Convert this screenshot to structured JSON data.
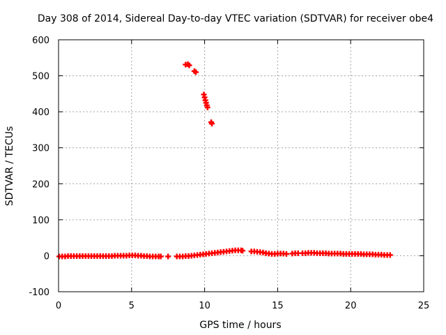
{
  "chart_data": {
    "type": "scatter",
    "title": "Day 308 of 2014, Sidereal Day-to-day VTEC variation (SDTVAR) for receiver obe4",
    "xlabel": "GPS time / hours",
    "ylabel": "SDTVAR / TECUs",
    "xlim": [
      0,
      25
    ],
    "ylim": [
      -100,
      600
    ],
    "xticks": [
      "0",
      "5",
      "10",
      "15",
      "20",
      "25"
    ],
    "yticks": [
      "-100",
      "0",
      "100",
      "200",
      "300",
      "400",
      "500",
      "600"
    ],
    "grid": true,
    "marker": "plus",
    "color": "#ff0000",
    "series": [
      {
        "name": "SDTVAR",
        "points": [
          [
            0.05,
            -2
          ],
          [
            0.25,
            -2
          ],
          [
            0.45,
            -2
          ],
          [
            0.65,
            -1
          ],
          [
            0.85,
            -1
          ],
          [
            1.05,
            -1
          ],
          [
            1.25,
            -1
          ],
          [
            1.45,
            -1
          ],
          [
            1.65,
            -1
          ],
          [
            1.85,
            -1
          ],
          [
            2.05,
            -1
          ],
          [
            2.25,
            -1
          ],
          [
            2.45,
            -1
          ],
          [
            2.65,
            -1
          ],
          [
            2.85,
            -1
          ],
          [
            3.05,
            -1
          ],
          [
            3.25,
            -1
          ],
          [
            3.45,
            -1
          ],
          [
            3.65,
            -1
          ],
          [
            3.85,
            0
          ],
          [
            4.05,
            0
          ],
          [
            4.25,
            0
          ],
          [
            4.45,
            0
          ],
          [
            4.65,
            0
          ],
          [
            4.85,
            1
          ],
          [
            5.05,
            1
          ],
          [
            5.25,
            1
          ],
          [
            5.45,
            0
          ],
          [
            5.65,
            0
          ],
          [
            5.85,
            -1
          ],
          [
            6.05,
            -1
          ],
          [
            6.25,
            -2
          ],
          [
            6.45,
            -2
          ],
          [
            6.65,
            -2
          ],
          [
            6.85,
            -2
          ],
          [
            7.0,
            -2
          ],
          [
            7.5,
            -2
          ],
          [
            8.1,
            -2
          ],
          [
            8.3,
            -2
          ],
          [
            8.5,
            -2
          ],
          [
            8.7,
            -1
          ],
          [
            8.9,
            -1
          ],
          [
            9.1,
            0
          ],
          [
            9.3,
            1
          ],
          [
            9.5,
            2
          ],
          [
            9.7,
            3
          ],
          [
            9.9,
            4
          ],
          [
            10.1,
            5
          ],
          [
            10.3,
            6
          ],
          [
            10.5,
            7
          ],
          [
            10.7,
            8
          ],
          [
            10.9,
            9
          ],
          [
            11.1,
            10
          ],
          [
            11.3,
            11
          ],
          [
            11.5,
            12
          ],
          [
            11.7,
            13
          ],
          [
            11.9,
            14
          ],
          [
            12.1,
            15
          ],
          [
            12.3,
            15
          ],
          [
            12.5,
            15
          ],
          [
            12.6,
            14
          ],
          [
            13.2,
            12
          ],
          [
            13.4,
            12
          ],
          [
            13.6,
            11
          ],
          [
            13.8,
            10
          ],
          [
            14.0,
            9
          ],
          [
            14.2,
            7
          ],
          [
            14.4,
            6
          ],
          [
            14.6,
            5
          ],
          [
            14.8,
            5
          ],
          [
            15.0,
            6
          ],
          [
            15.2,
            6
          ],
          [
            15.4,
            6
          ],
          [
            15.6,
            5
          ],
          [
            16.0,
            6
          ],
          [
            16.2,
            7
          ],
          [
            16.4,
            7
          ],
          [
            16.7,
            7
          ],
          [
            16.9,
            7
          ],
          [
            17.1,
            8
          ],
          [
            17.3,
            8
          ],
          [
            17.5,
            8
          ],
          [
            17.7,
            7
          ],
          [
            17.9,
            7
          ],
          [
            18.1,
            7
          ],
          [
            18.3,
            7
          ],
          [
            18.5,
            6
          ],
          [
            18.7,
            6
          ],
          [
            18.9,
            6
          ],
          [
            19.1,
            6
          ],
          [
            19.3,
            6
          ],
          [
            19.5,
            5
          ],
          [
            19.7,
            5
          ],
          [
            19.9,
            5
          ],
          [
            20.1,
            5
          ],
          [
            20.3,
            5
          ],
          [
            20.5,
            5
          ],
          [
            20.7,
            5
          ],
          [
            20.9,
            4
          ],
          [
            21.1,
            4
          ],
          [
            21.3,
            4
          ],
          [
            21.5,
            4
          ],
          [
            21.7,
            3
          ],
          [
            21.9,
            3
          ],
          [
            22.1,
            3
          ],
          [
            22.3,
            2
          ],
          [
            22.5,
            2
          ],
          [
            22.7,
            2
          ],
          [
            8.7,
            531
          ],
          [
            8.85,
            532
          ],
          [
            8.95,
            529
          ],
          [
            9.3,
            513
          ],
          [
            9.4,
            510
          ],
          [
            9.95,
            448
          ],
          [
            10.0,
            440
          ],
          [
            10.05,
            432
          ],
          [
            10.1,
            425
          ],
          [
            10.15,
            418
          ],
          [
            10.2,
            412
          ],
          [
            10.45,
            371
          ],
          [
            10.5,
            367
          ]
        ]
      }
    ]
  }
}
